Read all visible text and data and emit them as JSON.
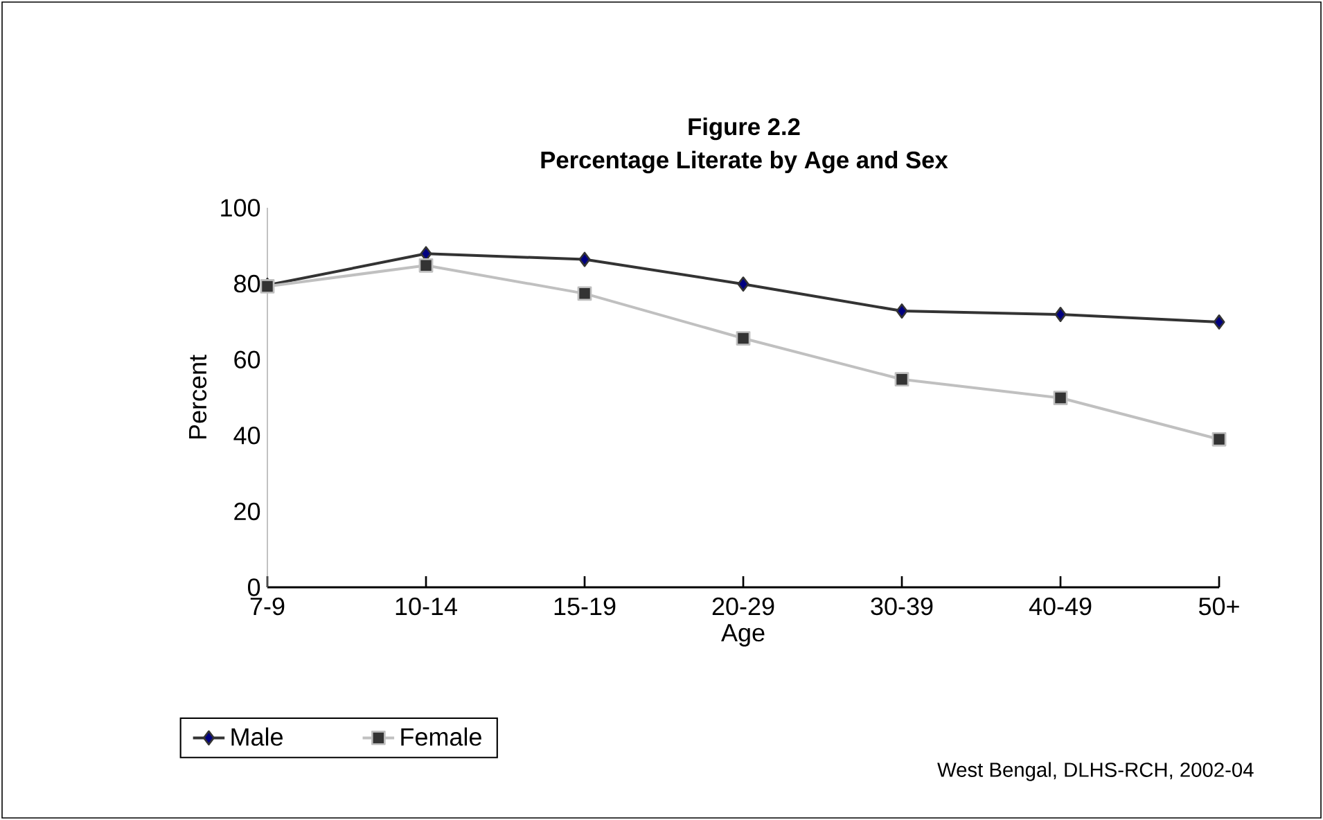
{
  "chart_data": {
    "type": "line",
    "title": "Figure 2.2",
    "subtitle": "Percentage Literate by Age and Sex",
    "xlabel": "Age",
    "ylabel": "Percent",
    "categories": [
      "7-9",
      "10-14",
      "15-19",
      "20-29",
      "30-39",
      "40-49",
      "50+"
    ],
    "series": [
      {
        "name": "Male",
        "color": "#333333",
        "marker": "diamond",
        "values": [
          79.6,
          87.9,
          86.4,
          79.9,
          72.8,
          71.9,
          69.9
        ]
      },
      {
        "name": "Female",
        "color": "#c0c0c0",
        "marker": "square",
        "values": [
          79.3,
          84.8,
          77.4,
          65.6,
          54.8,
          49.9,
          39.0
        ]
      }
    ],
    "ylim": [
      0,
      100
    ],
    "yticks": [
      0,
      20,
      40,
      60,
      80,
      100
    ],
    "grid": false,
    "legend": "bottom left",
    "annotations": [
      "West Bengal, DLHS-RCH, 2002-04"
    ]
  }
}
